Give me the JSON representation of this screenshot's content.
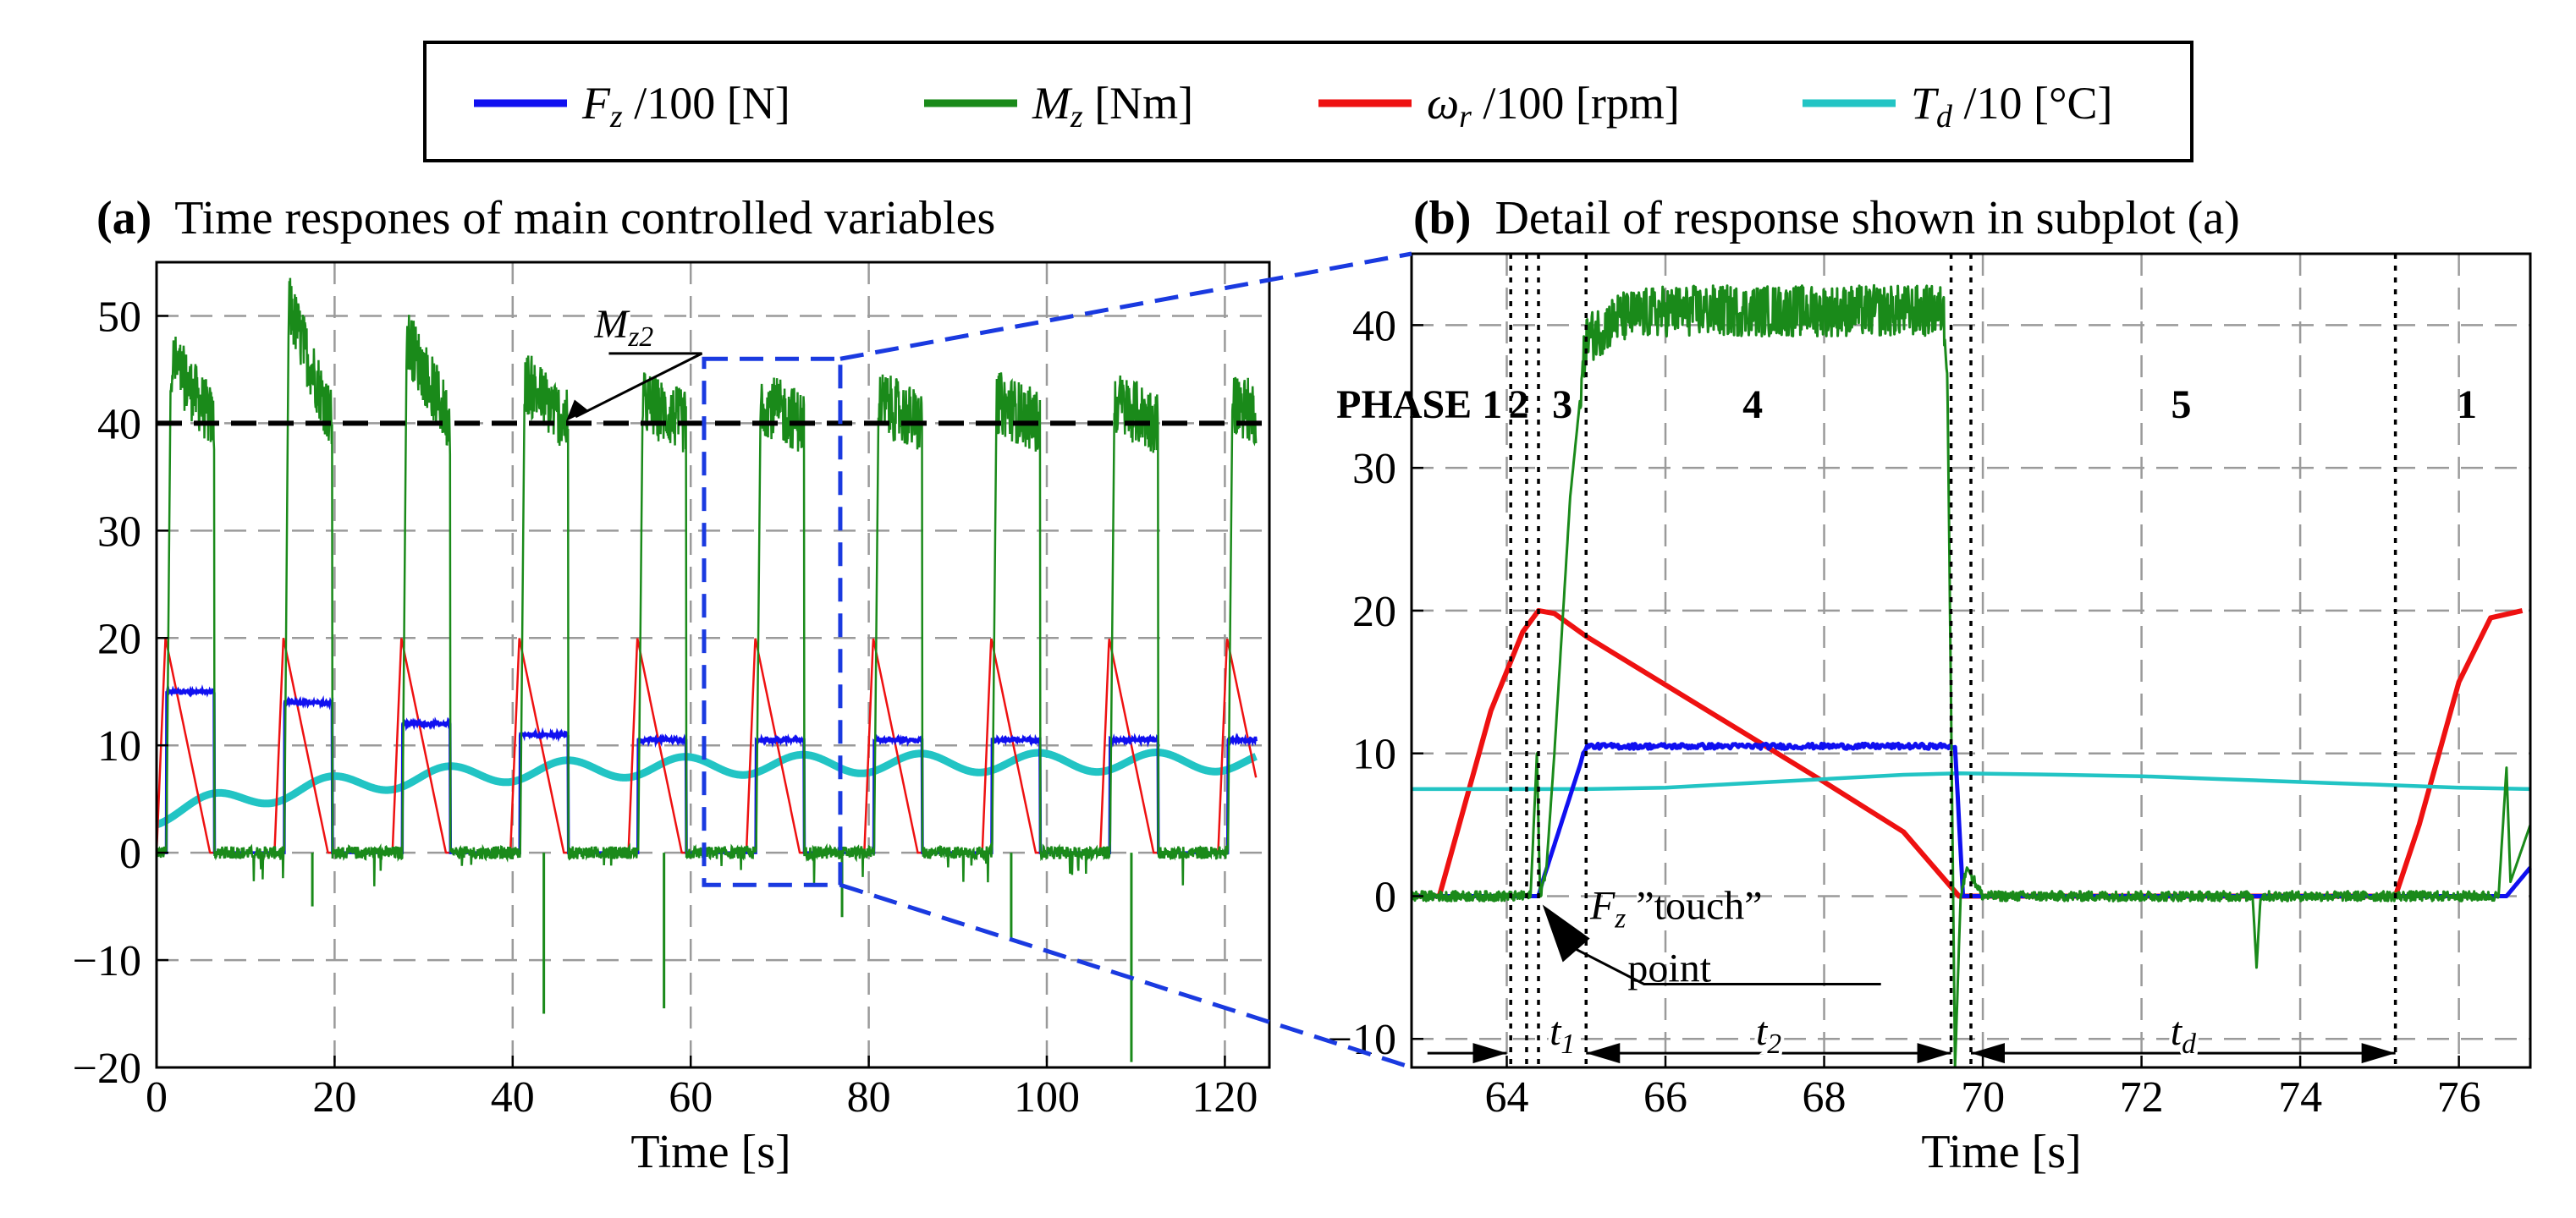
{
  "colors": {
    "Fz": "#1010f0",
    "Mz": "#1a8a1a",
    "omega": "#ee1111",
    "Td": "#22c4c4",
    "zoom": "#1a3ae0"
  },
  "legend": [
    {
      "key": "Fz",
      "symbol": "F",
      "sub": "z",
      "text": " /100 [N]"
    },
    {
      "key": "Mz",
      "symbol": "M",
      "sub": "z",
      "text": "  [Nm]"
    },
    {
      "key": "omega",
      "symbol": "ω",
      "sub": "r",
      "text": " /100 [rpm]"
    },
    {
      "key": "Td",
      "symbol": "T",
      "sub": "d",
      "text": " /10  [°C]"
    }
  ],
  "chart_data": [
    {
      "type": "line",
      "panel_tag": "(a)",
      "title": "Time respones of main controlled variables",
      "xlabel": "Time [s]",
      "ylabel": "",
      "xlim": [
        0,
        125
      ],
      "ylim": [
        -20,
        55
      ],
      "xticks": [
        0,
        20,
        40,
        60,
        80,
        100,
        120
      ],
      "yticks": [
        -20,
        -10,
        0,
        10,
        20,
        30,
        40,
        50
      ],
      "grid": true,
      "cycle_period": 13.25,
      "cycle_starts": [
        0,
        13.25,
        26.5,
        39.75,
        53,
        66.25,
        79.5,
        92.75,
        106,
        119.25
      ],
      "cycle_Mz_peak": [
        46,
        51,
        48,
        44,
        42,
        42,
        42,
        42,
        42,
        42
      ],
      "cycle_Fz_level": [
        15,
        14,
        12,
        11,
        10.5,
        10.5,
        10.5,
        10.5,
        10.5,
        10.5
      ],
      "series": [
        {
          "name": "Fz /100 [N]",
          "key": "Fz"
        },
        {
          "name": "Mz [Nm]",
          "key": "Mz"
        },
        {
          "name": "ωr /100 [rpm]",
          "key": "omega",
          "peak": 20
        },
        {
          "name": "Td /10 [°C]",
          "key": "Td",
          "start": 3.5,
          "end": 8.5
        }
      ],
      "reference_line": {
        "y": 40,
        "label": "M",
        "label_sub": "z2"
      },
      "zoom_box": {
        "x": [
          61.5,
          76.8
        ],
        "y": [
          -3,
          46
        ]
      }
    },
    {
      "type": "line",
      "panel_tag": "(b)",
      "title": "Detail of response shown in subplot (a)",
      "xlabel": "Time [s]",
      "ylabel": "",
      "xlim": [
        62.8,
        76.9
      ],
      "ylim": [
        -12,
        45
      ],
      "xticks": [
        64,
        66,
        68,
        70,
        72,
        74,
        76
      ],
      "yticks": [
        -10,
        0,
        10,
        20,
        30,
        40
      ],
      "grid": true,
      "phase_lines": [
        64.05,
        64.25,
        64.4,
        65.0,
        69.6,
        69.85,
        75.2
      ],
      "phase_labels": [
        {
          "text": "PHASE 1",
          "x": 63.6
        },
        {
          "text": "2",
          "x": 64.15
        },
        {
          "text": "3",
          "x": 64.7
        },
        {
          "text": "4",
          "x": 67.1
        },
        {
          "text": "5",
          "x": 72.5
        },
        {
          "text": "1",
          "x": 76.1
        }
      ],
      "series": [
        {
          "name": "ωr /100 [rpm]",
          "key": "omega",
          "x": [
            62.8,
            63.15,
            63.4,
            63.8,
            64.2,
            64.4,
            64.6,
            65.0,
            66.0,
            67.0,
            68.0,
            69.0,
            69.7,
            70.0,
            72.0,
            74.0,
            75.2,
            75.5,
            76.0,
            76.4,
            76.8
          ],
          "y": [
            0,
            0,
            5,
            13,
            18.5,
            20,
            19.8,
            18.2,
            14.8,
            11.4,
            8.0,
            4.5,
            0,
            0,
            0,
            0,
            0,
            5,
            15,
            19.5,
            20
          ]
        },
        {
          "name": "Td /10 [°C]",
          "key": "Td",
          "x": [
            62.8,
            64.0,
            65.0,
            66.0,
            67.0,
            68.0,
            69.0,
            69.7,
            71.0,
            72.0,
            73.0,
            74.0,
            75.0,
            76.0,
            76.9
          ],
          "y": [
            7.5,
            7.5,
            7.5,
            7.6,
            7.9,
            8.2,
            8.5,
            8.6,
            8.5,
            8.4,
            8.2,
            8.0,
            7.8,
            7.6,
            7.5
          ]
        },
        {
          "name": "Fz /100 [N]",
          "key": "Fz",
          "x": [
            62.8,
            64.4,
            64.45,
            65.0,
            65.1,
            69.55,
            69.65,
            69.75,
            76.6,
            76.9
          ],
          "y": [
            0,
            0,
            1,
            10.5,
            10.5,
            10.5,
            10.5,
            0,
            0,
            2
          ]
        },
        {
          "name": "Mz [Nm]",
          "key": "Mz",
          "x": [
            62.8,
            64.3,
            64.38,
            64.42,
            64.5,
            64.6,
            64.8,
            65.0,
            65.4,
            66.0,
            69.5,
            69.55,
            69.65,
            69.72,
            69.8,
            70.0,
            73.4,
            73.45,
            73.5,
            76.5,
            76.6,
            76.65,
            76.9
          ],
          "y": [
            0,
            0,
            10,
            0,
            2,
            10,
            28,
            39,
            40.5,
            41,
            41,
            38,
            -12,
            0,
            2,
            0,
            0,
            -5,
            0,
            0,
            9,
            1,
            5
          ]
        }
      ],
      "annotations": {
        "touch": {
          "symbol": "F",
          "sub": "z",
          "text": " ”touch”",
          "line2": "point",
          "x": 64.45,
          "y": 0
        },
        "intervals": [
          {
            "label": "t",
            "sub": "1",
            "from": 64.4,
            "to": 65.0
          },
          {
            "label": "t",
            "sub": "2",
            "from": 65.0,
            "to": 69.6
          },
          {
            "label": "t",
            "sub": "d",
            "from": 69.85,
            "to": 75.2
          }
        ]
      }
    }
  ]
}
